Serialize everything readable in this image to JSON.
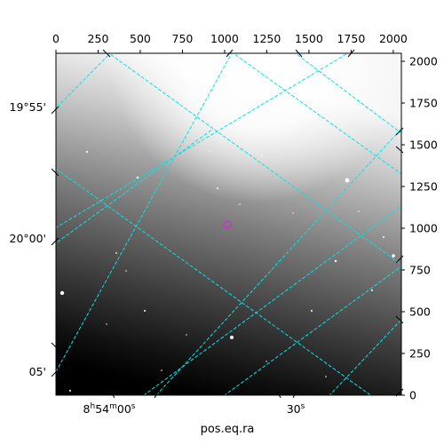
{
  "figure": {
    "xlabel": "pos.eq.ra",
    "pixel_axis_x": {
      "range": [
        0,
        2048
      ],
      "ticks": [
        0,
        250,
        500,
        750,
        1000,
        1250,
        1500,
        1750,
        2000
      ]
    },
    "pixel_axis_y": {
      "range": [
        0,
        2048
      ],
      "ticks": [
        0,
        250,
        500,
        750,
        1000,
        1250,
        1500,
        1750,
        2000
      ]
    },
    "dec_labels": [
      {
        "text": "19°55'"
      },
      {
        "text": "20°00'"
      },
      {
        "text": "05'"
      }
    ],
    "ra_labels": [
      {
        "text": "8h54m00s"
      },
      {
        "text": "30s"
      }
    ],
    "grid_color": "#00e5e5",
    "marker_color": "#cc33cc",
    "colormap": "grayscale"
  }
}
